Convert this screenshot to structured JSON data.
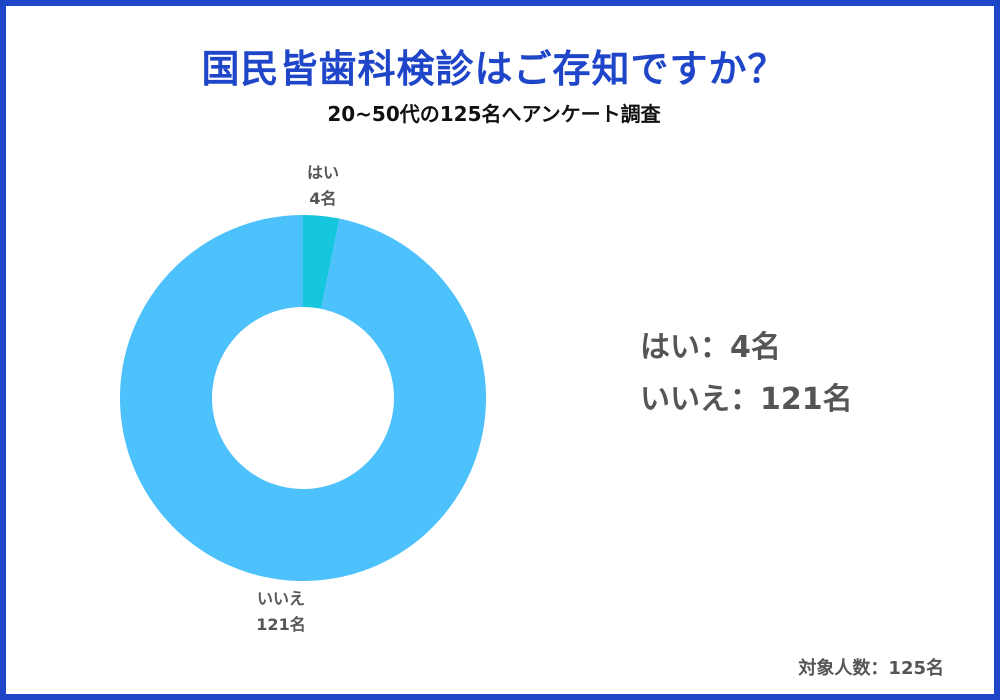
{
  "title": "国民皆歯科検診はご存知ですか？",
  "subtitle": "20~50代の125名へアンケート調査",
  "chart_data": {
    "type": "pie",
    "donut": true,
    "categories": [
      "はい",
      "いいえ"
    ],
    "values": [
      4,
      121
    ],
    "value_labels": [
      "4名",
      "121名"
    ],
    "colors": [
      "#16c6dc",
      "#4cc1fb"
    ]
  },
  "legend": {
    "yes": "はい：4名",
    "no": "いいえ：121名"
  },
  "footnote": "対象人数：125名",
  "colors": {
    "frame": "#1f46c8",
    "title": "#1f46c8",
    "text_gray": "#555555"
  }
}
